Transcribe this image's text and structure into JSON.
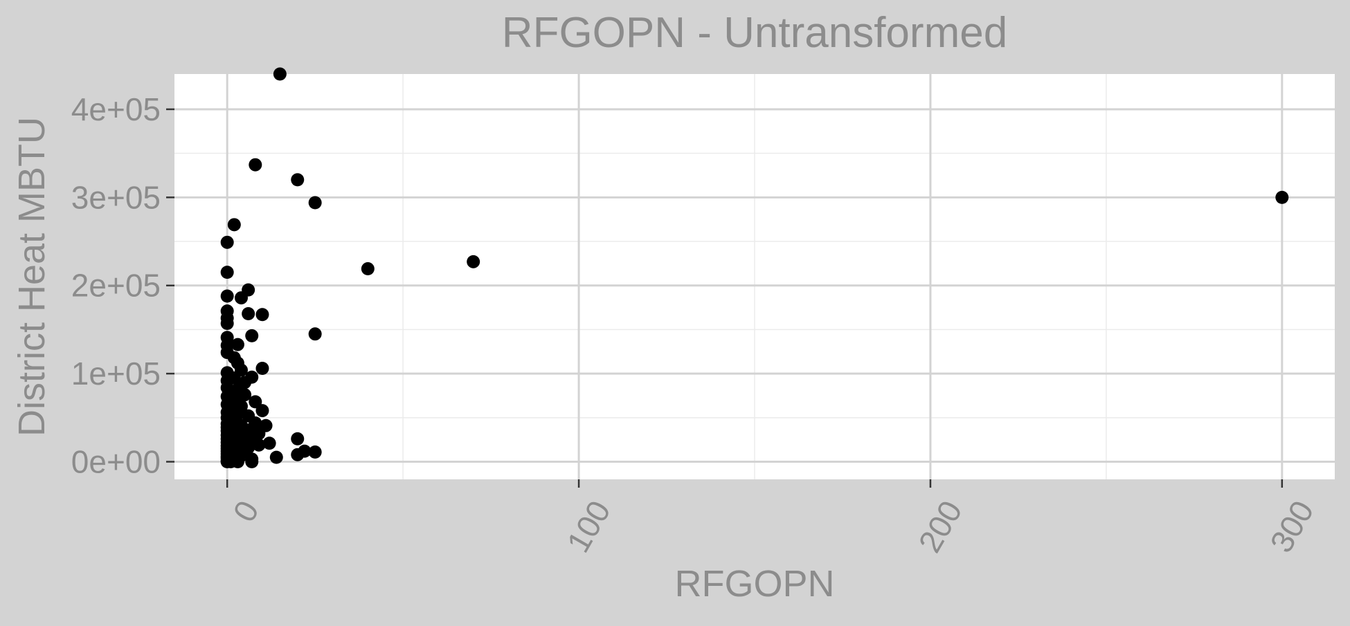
{
  "colors": {
    "plot_background": "#d3d3d3",
    "panel_background": "#ffffff",
    "grid": "#d3d3d3",
    "text": "#8c8c8c",
    "tick": "#333333",
    "points": "#000000"
  },
  "chart_data": {
    "type": "scatter",
    "title": "RFGOPN - Untransformed",
    "xlabel": "RFGOPN",
    "ylabel": "District Heat MBTU",
    "xlim": [
      -15,
      315
    ],
    "ylim": [
      -20000,
      440000
    ],
    "x_ticks": [
      0,
      100,
      200,
      300
    ],
    "x_tick_labels": [
      "0",
      "100",
      "200",
      "300"
    ],
    "y_ticks": [
      0,
      100000,
      200000,
      300000,
      400000
    ],
    "y_tick_labels": [
      "0e+00",
      "1e+05",
      "2e+05",
      "3e+05",
      "4e+05"
    ],
    "grid": true,
    "legend": "none",
    "points": [
      {
        "x": 15,
        "y": 440000
      },
      {
        "x": 8,
        "y": 337000
      },
      {
        "x": 20,
        "y": 320000
      },
      {
        "x": 25,
        "y": 294000
      },
      {
        "x": 2,
        "y": 269000
      },
      {
        "x": 0,
        "y": 249000
      },
      {
        "x": 40,
        "y": 219000
      },
      {
        "x": 70,
        "y": 227000
      },
      {
        "x": 0,
        "y": 215000
      },
      {
        "x": 6,
        "y": 195000
      },
      {
        "x": 4,
        "y": 186000
      },
      {
        "x": 0,
        "y": 188000
      },
      {
        "x": 0,
        "y": 171000
      },
      {
        "x": 0,
        "y": 163000
      },
      {
        "x": 0,
        "y": 157000
      },
      {
        "x": 6,
        "y": 168000
      },
      {
        "x": 10,
        "y": 167000
      },
      {
        "x": 7,
        "y": 143000
      },
      {
        "x": 25,
        "y": 145000
      },
      {
        "x": 0,
        "y": 141000
      },
      {
        "x": 0,
        "y": 132000
      },
      {
        "x": 3,
        "y": 133000
      },
      {
        "x": 0,
        "y": 124000
      },
      {
        "x": 2,
        "y": 118000
      },
      {
        "x": 3,
        "y": 112000
      },
      {
        "x": 10,
        "y": 106000
      },
      {
        "x": 4,
        "y": 104000
      },
      {
        "x": 0,
        "y": 101000
      },
      {
        "x": 7,
        "y": 96000
      },
      {
        "x": 2,
        "y": 95000
      },
      {
        "x": 0,
        "y": 92000
      },
      {
        "x": 5,
        "y": 90000
      },
      {
        "x": 0,
        "y": 84000
      },
      {
        "x": 3,
        "y": 82000
      },
      {
        "x": 1,
        "y": 80000
      },
      {
        "x": 5,
        "y": 76000
      },
      {
        "x": 0,
        "y": 74000
      },
      {
        "x": 2,
        "y": 71000
      },
      {
        "x": 8,
        "y": 68000
      },
      {
        "x": 0,
        "y": 65000
      },
      {
        "x": 4,
        "y": 63000
      },
      {
        "x": 1,
        "y": 60000
      },
      {
        "x": 10,
        "y": 58000
      },
      {
        "x": 0,
        "y": 56000
      },
      {
        "x": 3,
        "y": 54000
      },
      {
        "x": 6,
        "y": 52000
      },
      {
        "x": 0,
        "y": 50000
      },
      {
        "x": 2,
        "y": 48000
      },
      {
        "x": 1,
        "y": 46000
      },
      {
        "x": 8,
        "y": 44000
      },
      {
        "x": 0,
        "y": 43000
      },
      {
        "x": 4,
        "y": 41000
      },
      {
        "x": 11,
        "y": 41000
      },
      {
        "x": 0,
        "y": 39000
      },
      {
        "x": 2,
        "y": 37000
      },
      {
        "x": 6,
        "y": 36000
      },
      {
        "x": 0,
        "y": 35000
      },
      {
        "x": 3,
        "y": 33000
      },
      {
        "x": 9,
        "y": 32000
      },
      {
        "x": 1,
        "y": 31000
      },
      {
        "x": 0,
        "y": 30000
      },
      {
        "x": 5,
        "y": 29000
      },
      {
        "x": 2,
        "y": 28000
      },
      {
        "x": 20,
        "y": 26000
      },
      {
        "x": 0,
        "y": 26000
      },
      {
        "x": 7,
        "y": 25000
      },
      {
        "x": 3,
        "y": 24000
      },
      {
        "x": 1,
        "y": 23000
      },
      {
        "x": 0,
        "y": 22000
      },
      {
        "x": 12,
        "y": 21000
      },
      {
        "x": 4,
        "y": 20000
      },
      {
        "x": 9,
        "y": 19000
      },
      {
        "x": 0,
        "y": 18000
      },
      {
        "x": 2,
        "y": 17000
      },
      {
        "x": 6,
        "y": 16000
      },
      {
        "x": 0,
        "y": 15000
      },
      {
        "x": 1,
        "y": 14000
      },
      {
        "x": 3,
        "y": 13000
      },
      {
        "x": 22,
        "y": 12000
      },
      {
        "x": 0,
        "y": 12000
      },
      {
        "x": 25,
        "y": 11000
      },
      {
        "x": 5,
        "y": 11000
      },
      {
        "x": 2,
        "y": 10000
      },
      {
        "x": 0,
        "y": 9000
      },
      {
        "x": 20,
        "y": 8000
      },
      {
        "x": 1,
        "y": 8000
      },
      {
        "x": 4,
        "y": 7000
      },
      {
        "x": 0,
        "y": 6000
      },
      {
        "x": 14,
        "y": 5000
      },
      {
        "x": 3,
        "y": 5000
      },
      {
        "x": 0,
        "y": 4000
      },
      {
        "x": 7,
        "y": 3000
      },
      {
        "x": 2,
        "y": 2000
      },
      {
        "x": 0,
        "y": 1000
      },
      {
        "x": 1,
        "y": 0
      },
      {
        "x": 0,
        "y": 0
      },
      {
        "x": 3,
        "y": 0
      },
      {
        "x": 7,
        "y": 0
      },
      {
        "x": 300,
        "y": 300000
      }
    ]
  }
}
